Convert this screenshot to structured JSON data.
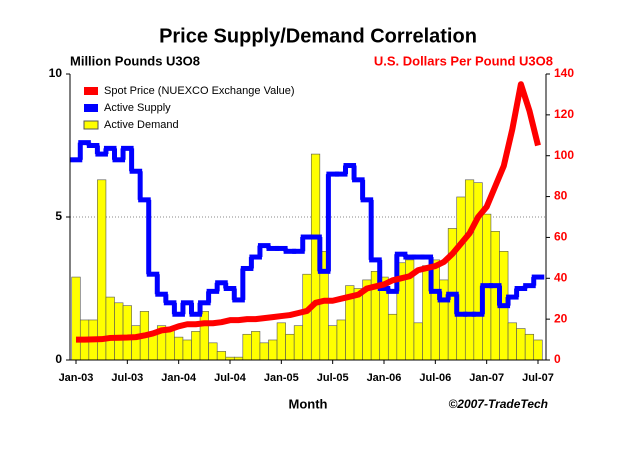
{
  "chart_data": {
    "type": "bar-line",
    "title": "Price Supply/Demand Correlation",
    "y_label": "Million Pounds U3O8",
    "y2_label": "U.S. Dollars Per Pound U3O8",
    "x_label": "Month",
    "annotation": "©2007-TradeTech",
    "categories": [
      "Jan-03",
      null,
      null,
      null,
      null,
      null,
      "Jul-03",
      null,
      null,
      null,
      null,
      null,
      "Jan-04",
      null,
      null,
      null,
      null,
      null,
      "Jul-04",
      null,
      null,
      null,
      null,
      null,
      "Jan-05",
      null,
      null,
      null,
      null,
      null,
      "Jul-05",
      null,
      null,
      null,
      null,
      null,
      "Jan-06",
      null,
      null,
      null,
      null,
      null,
      "Jul-06",
      null,
      null,
      null,
      null,
      null,
      "Jan-07",
      null,
      null,
      null,
      null,
      null,
      "Jul-07"
    ],
    "ylim": [
      0,
      10
    ],
    "yticks": [
      0,
      5,
      10
    ],
    "y2lim": [
      0,
      140
    ],
    "y2ticks": [
      0,
      20,
      40,
      60,
      80,
      100,
      120,
      140
    ],
    "grid": true,
    "legend": "top-left",
    "series": [
      {
        "name": "Spot Price (NUEXCO Exchange Value)",
        "color": "#ff0000",
        "axis": "y2",
        "kind": "line",
        "values": [
          10,
          10,
          10.1,
          10.2,
          10.8,
          10.9,
          11,
          11.2,
          12,
          13,
          14.5,
          15,
          16.5,
          17.5,
          17.5,
          18,
          18,
          18.5,
          19.5,
          19.5,
          20,
          20,
          20.5,
          21,
          21.5,
          22,
          23,
          24,
          28,
          29,
          29,
          30,
          31,
          32,
          35,
          36,
          37,
          39,
          40,
          41,
          44,
          45,
          46,
          48,
          52,
          57,
          62,
          70,
          75,
          85,
          95,
          113,
          135,
          122,
          105
        ]
      },
      {
        "name": "Active Supply",
        "color": "#0000ff",
        "kind": "step",
        "values": [
          7.0,
          7.6,
          7.5,
          7.2,
          7.4,
          7.0,
          7.4,
          6.6,
          5.6,
          3.0,
          2.3,
          2.0,
          1.6,
          2.0,
          1.6,
          2.0,
          2.4,
          2.7,
          2.5,
          2.1,
          3.2,
          3.6,
          4.0,
          3.9,
          3.9,
          3.8,
          3.8,
          4.3,
          4.3,
          3.1,
          6.5,
          6.5,
          6.8,
          6.3,
          5.6,
          3.5,
          2.5,
          2.4,
          3.7,
          3.6,
          3.6,
          3.6,
          2.4,
          2.1,
          2.3,
          1.6,
          1.6,
          1.6,
          2.6,
          2.6,
          1.9,
          2.2,
          2.5,
          2.6,
          2.9
        ]
      },
      {
        "name": "Active Demand",
        "color": "#ffff00",
        "kind": "bar",
        "values": [
          2.9,
          1.4,
          1.4,
          6.3,
          2.2,
          2.0,
          1.9,
          1.2,
          1.7,
          0.9,
          1.2,
          1.1,
          0.8,
          0.7,
          1.0,
          1.7,
          0.6,
          0.3,
          0.1,
          0.1,
          0.9,
          1.0,
          0.6,
          0.7,
          1.3,
          0.9,
          1.2,
          3.0,
          7.2,
          3.8,
          1.2,
          1.4,
          2.6,
          2.5,
          2.8,
          3.1,
          2.9,
          1.6,
          3.4,
          3.5,
          1.3,
          3.3,
          3.5,
          2.8,
          4.6,
          5.7,
          6.3,
          6.2,
          5.1,
          4.5,
          3.8,
          1.3,
          1.1,
          0.9,
          0.7
        ]
      }
    ]
  }
}
